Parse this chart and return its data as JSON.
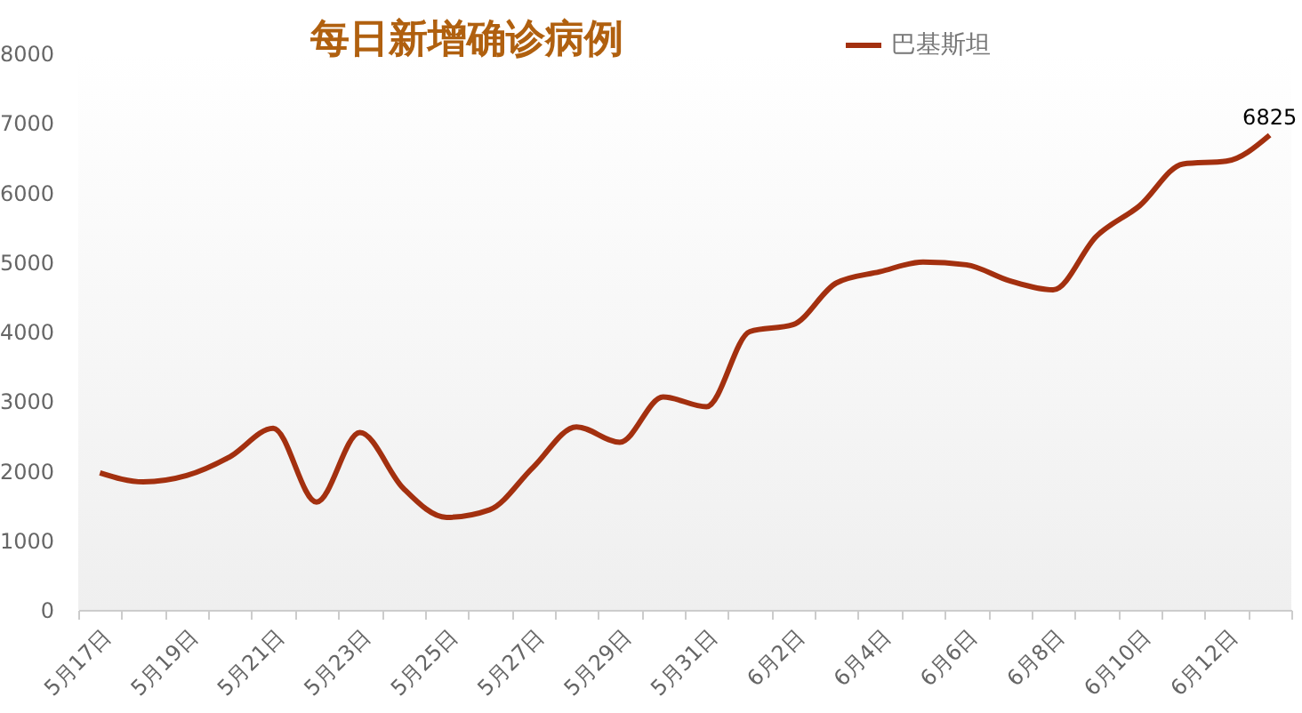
{
  "chart_data": {
    "type": "line",
    "title": "每日新增确诊病例",
    "categories": [
      "5月17日",
      null,
      "5月19日",
      null,
      "5月21日",
      null,
      "5月23日",
      null,
      "5月25日",
      null,
      "5月27日",
      null,
      "5月29日",
      null,
      "5月31日",
      null,
      "6月2日",
      null,
      "6月4日",
      null,
      "6月6日",
      null,
      "6月8日",
      null,
      "6月10日",
      null,
      "6月12日",
      null
    ],
    "series": [
      {
        "name": "巴基斯坦",
        "color": "#a3300f",
        "values": [
          1970,
          1840,
          1930,
          2200,
          2610,
          1550,
          2550,
          1750,
          1330,
          1440,
          2050,
          2630,
          2410,
          3060,
          2920,
          4000,
          4100,
          4700,
          4860,
          5000,
          4960,
          4730,
          4600,
          5370,
          5810,
          6410,
          6450,
          6825
        ],
        "value_labels": [
          null,
          null,
          null,
          null,
          null,
          null,
          null,
          null,
          null,
          null,
          null,
          null,
          null,
          null,
          null,
          null,
          null,
          null,
          null,
          null,
          null,
          null,
          null,
          null,
          null,
          null,
          null,
          "6825"
        ]
      }
    ],
    "ylim": [
      0,
      8000
    ],
    "yticks": [
      0,
      1000,
      2000,
      3000,
      4000,
      5000,
      6000,
      7000,
      8000
    ],
    "legend": "top",
    "grid": false
  }
}
